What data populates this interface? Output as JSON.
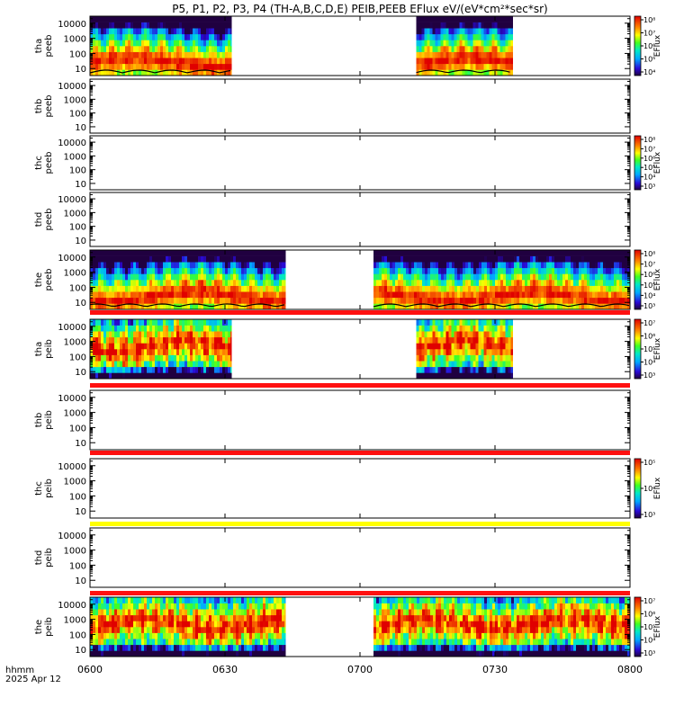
{
  "figure": {
    "title": "P5, P1, P2, P3, P4 (TH-A,B,C,D,E) PEIB,PEEB EFlux eV/(eV*cm²*sec*sr)",
    "time_axis": {
      "label": "hhmm",
      "date": "2025 Apr 12",
      "ticks": [
        "0600",
        "0630",
        "0700",
        "0730",
        "0800"
      ]
    },
    "colorbar_label": "EFlux"
  },
  "chart_data": [
    {
      "type": "heatmap",
      "ylabel": "tha\npeeb",
      "yticks": [
        "10",
        "100",
        "1000",
        "10000"
      ],
      "colorbar_ticks": [
        "10⁴",
        "10⁵",
        "10⁶",
        "10⁷",
        "10⁸"
      ],
      "data_intervals": [
        [
          0,
          31.5
        ],
        [
          72.5,
          94
        ]
      ],
      "character": "electron",
      "has_potential_line": true,
      "has_colorbar": true
    },
    {
      "type": "heatmap",
      "ylabel": "thb\npeeb",
      "yticks": [
        "10",
        "100",
        "1000",
        "10000"
      ],
      "colorbar_ticks": [],
      "data_intervals": [],
      "has_colorbar": false
    },
    {
      "type": "heatmap",
      "ylabel": "thc\npeeb",
      "yticks": [
        "10",
        "100",
        "1000",
        "10000"
      ],
      "colorbar_ticks": [
        "10³",
        "10⁴",
        "10⁵",
        "10⁶",
        "10⁷",
        "10⁸"
      ],
      "data_intervals": [],
      "has_colorbar": true
    },
    {
      "type": "heatmap",
      "ylabel": "thd\npeeb",
      "yticks": [
        "10",
        "100",
        "1000",
        "10000"
      ],
      "colorbar_ticks": [],
      "data_intervals": [],
      "has_colorbar": false
    },
    {
      "type": "heatmap",
      "ylabel": "the\npeeb",
      "yticks": [
        "10",
        "100",
        "1000",
        "10000"
      ],
      "colorbar_ticks": [
        "10³",
        "10⁴",
        "10⁵",
        "10⁶",
        "10⁷",
        "10⁸"
      ],
      "data_intervals": [
        [
          0,
          43.5
        ],
        [
          63,
          120
        ]
      ],
      "character": "electron",
      "has_potential_line": true,
      "has_colorbar": true,
      "bar_below": "red"
    },
    {
      "type": "heatmap",
      "ylabel": "tha\npeib",
      "yticks": [
        "10",
        "100",
        "1000",
        "10000"
      ],
      "colorbar_ticks": [
        "10³",
        "10⁴",
        "10⁵",
        "10⁶",
        "10⁷"
      ],
      "data_intervals": [
        [
          0,
          31.5
        ],
        [
          72.5,
          94
        ]
      ],
      "character": "ion",
      "has_colorbar": true,
      "bar_below": "red"
    },
    {
      "type": "heatmap",
      "ylabel": "thb\npeib",
      "yticks": [
        "10",
        "100",
        "1000",
        "10000"
      ],
      "colorbar_ticks": [],
      "data_intervals": [],
      "has_colorbar": false,
      "bar_below": "red"
    },
    {
      "type": "heatmap",
      "ylabel": "thc\npeib",
      "yticks": [
        "10",
        "100",
        "1000",
        "10000"
      ],
      "colorbar_ticks": [
        "10³",
        "10⁴",
        "10⁵"
      ],
      "data_intervals": [],
      "has_colorbar": true,
      "bar_below": "yellow"
    },
    {
      "type": "heatmap",
      "ylabel": "thd\npeib",
      "yticks": [
        "10",
        "100",
        "1000",
        "10000"
      ],
      "colorbar_ticks": [],
      "data_intervals": [],
      "has_colorbar": false,
      "bar_below": "red"
    },
    {
      "type": "heatmap",
      "ylabel": "the\npeib",
      "yticks": [
        "10",
        "100",
        "1000",
        "10000"
      ],
      "colorbar_ticks": [
        "10³",
        "10⁴",
        "10⁵",
        "10⁶",
        "10⁷"
      ],
      "data_intervals": [
        [
          0,
          43.5
        ],
        [
          63,
          120
        ]
      ],
      "character": "ion",
      "has_colorbar": true
    }
  ]
}
